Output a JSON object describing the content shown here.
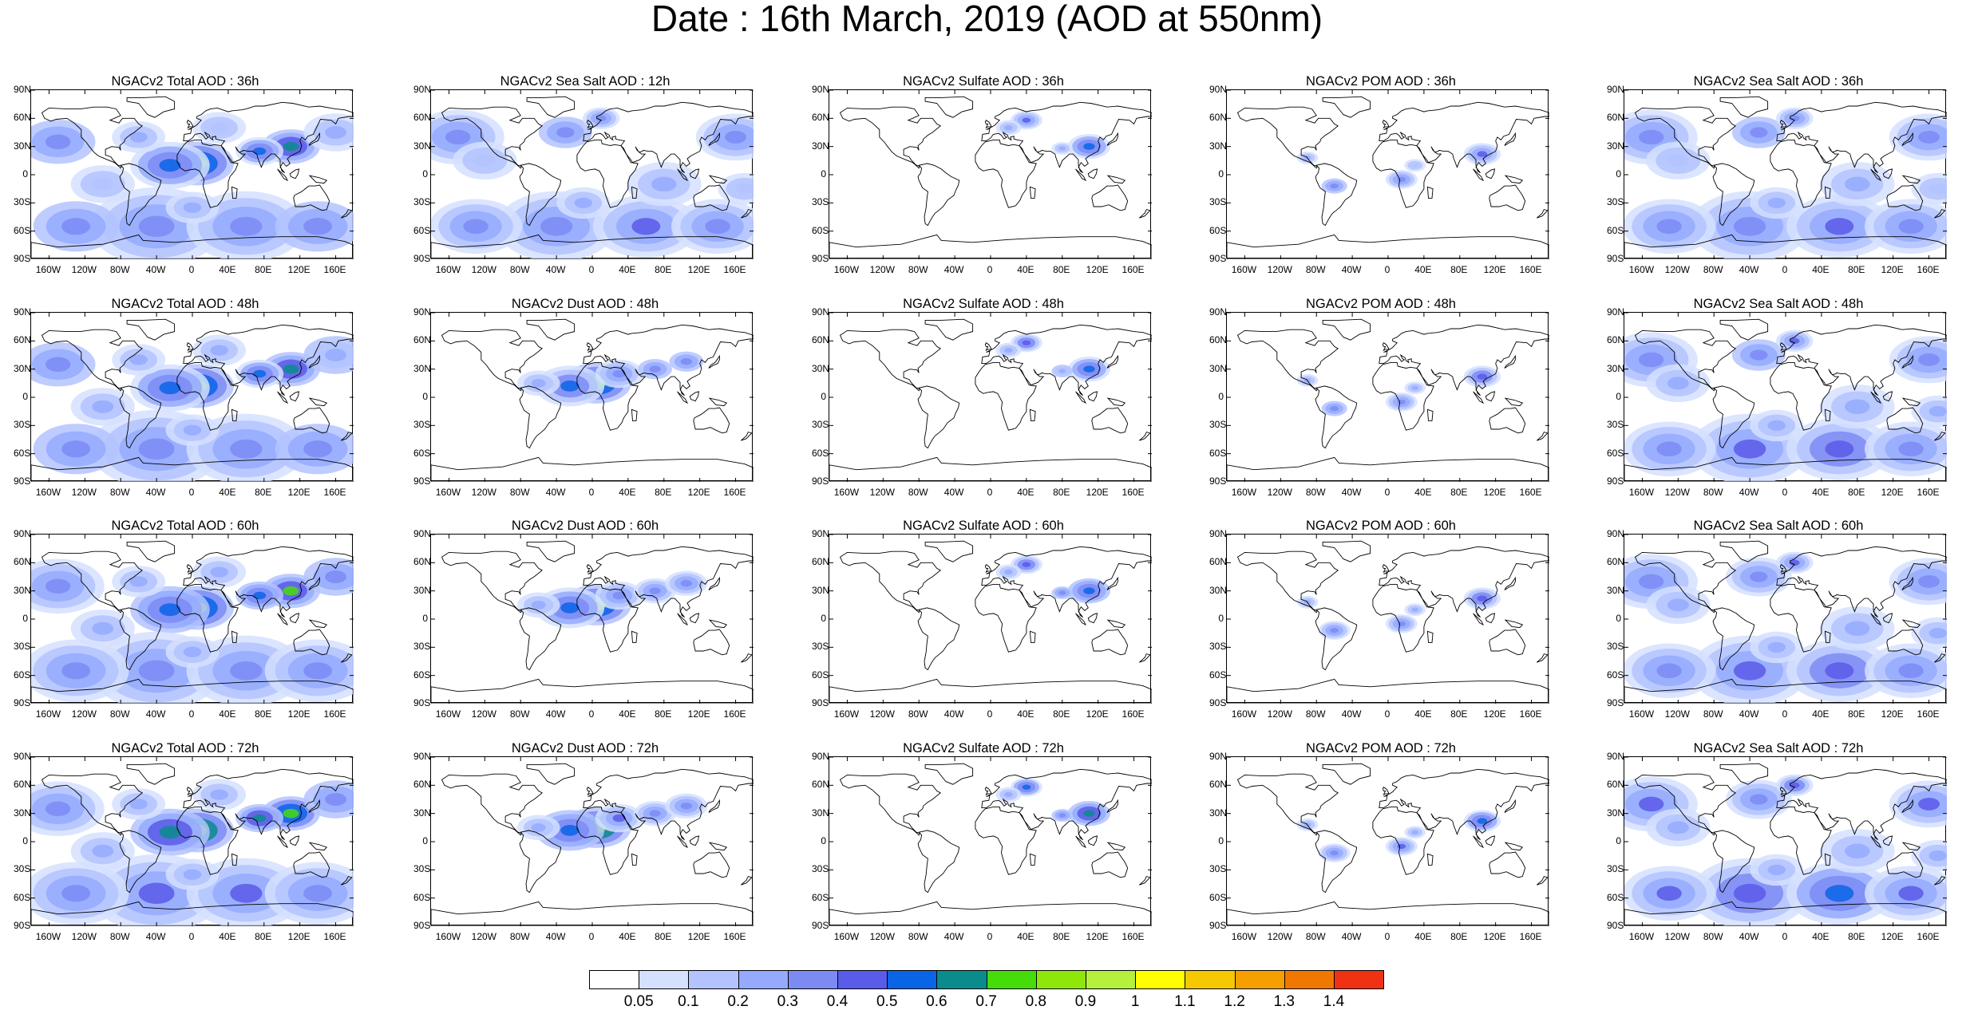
{
  "title": "Date : 16th March, 2019 (AOD at 550nm)",
  "axes": {
    "lat_labels": [
      "90N",
      "60N",
      "30N",
      "0",
      "30S",
      "60S",
      "90S"
    ],
    "lon_labels": [
      "160W",
      "120W",
      "80W",
      "40W",
      "0",
      "40E",
      "80E",
      "120E",
      "160E"
    ]
  },
  "panels": [
    [
      "NGACv2 Total AOD : 36h",
      "NGACv2 Sea Salt  AOD : 12h",
      "NGACv2 Sulfate AOD : 36h",
      "NGACv2 POM AOD : 36h",
      "NGACv2 Sea Salt AOD : 36h"
    ],
    [
      "NGACv2 Total AOD : 48h",
      "NGACv2 Dust AOD : 48h",
      "NGACv2 Sulfate AOD : 48h",
      "NGACv2 POM AOD : 48h",
      "NGACv2 Sea Salt AOD : 48h"
    ],
    [
      "NGACv2 Total AOD : 60h",
      "NGACv2 Dust AOD : 60h",
      "NGACv2 Sulfate AOD : 60h",
      "NGACv2 POM AOD : 60h",
      "NGACv2 Sea Salt AOD : 60h"
    ],
    [
      "NGACv2 Total AOD : 72h",
      "NGACv2 Dust AOD : 72h",
      "NGACv2 Sulfate AOD : 72h",
      "NGACv2 POM AOD : 72h",
      "NGACv2 Sea Salt  AOD : 72h"
    ]
  ],
  "colorbar": {
    "labels": [
      "0.05",
      "0.1",
      "0.2",
      "0.3",
      "0.4",
      "0.5",
      "0.6",
      "0.7",
      "0.8",
      "0.9",
      "1",
      "1.1",
      "1.2",
      "1.3",
      "1.4"
    ],
    "colors": [
      "#ffffff",
      "#d5e0ff",
      "#b3c3ff",
      "#95aaff",
      "#7c8bf4",
      "#5a5be8",
      "#0a64e6",
      "#0a8c8c",
      "#46dc0a",
      "#8fe60a",
      "#b4f03c",
      "#ffff00",
      "#f5c800",
      "#f5a000",
      "#f07800",
      "#f03214"
    ]
  }
}
